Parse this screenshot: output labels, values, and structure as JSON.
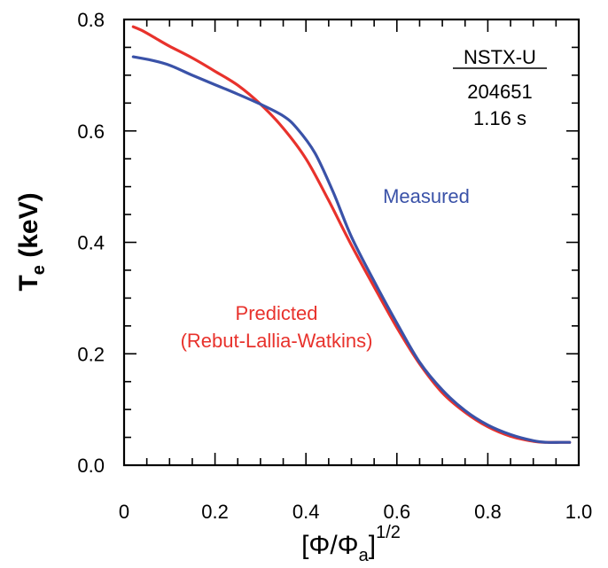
{
  "chart_data": {
    "type": "line",
    "xlim": [
      0.0,
      1.0
    ],
    "ylim": [
      0.0,
      0.8
    ],
    "xticks": [
      "0",
      "0.2",
      "0.4",
      "0.6",
      "0.8",
      "1.0"
    ],
    "yticks": [
      "0.0",
      "0.2",
      "0.4",
      "0.6",
      "0.8"
    ],
    "xlabel": "[Φ/Φa]1/2",
    "xlabel_parts": {
      "base": "[Φ/Φ",
      "sub": "a",
      "close": "]",
      "sup": "1/2"
    },
    "ylabel": "Te (keV)",
    "ylabel_parts": {
      "base": "T",
      "sub": "e",
      "rest": " (keV)"
    },
    "series": [
      {
        "name": "Measured",
        "color": "#3a52a8",
        "x": [
          0.02,
          0.06,
          0.1,
          0.15,
          0.2,
          0.25,
          0.3,
          0.35,
          0.38,
          0.42,
          0.46,
          0.5,
          0.55,
          0.6,
          0.65,
          0.7,
          0.75,
          0.8,
          0.85,
          0.9,
          0.93,
          0.96,
          0.98
        ],
        "y": [
          0.733,
          0.727,
          0.718,
          0.7,
          0.683,
          0.666,
          0.648,
          0.627,
          0.605,
          0.56,
          0.49,
          0.41,
          0.33,
          0.255,
          0.185,
          0.135,
          0.098,
          0.072,
          0.055,
          0.044,
          0.041,
          0.041,
          0.041
        ]
      },
      {
        "name": "Predicted (Rebut-Lallia-Watkins)",
        "color": "#e8322c",
        "x": [
          0.02,
          0.04,
          0.07,
          0.1,
          0.15,
          0.2,
          0.25,
          0.3,
          0.35,
          0.4,
          0.45,
          0.5,
          0.55,
          0.6,
          0.65,
          0.7,
          0.75,
          0.8,
          0.85,
          0.9,
          0.93,
          0.96,
          0.98
        ],
        "y": [
          0.787,
          0.78,
          0.766,
          0.752,
          0.731,
          0.707,
          0.682,
          0.648,
          0.605,
          0.55,
          0.475,
          0.395,
          0.32,
          0.247,
          0.182,
          0.13,
          0.095,
          0.069,
          0.052,
          0.043,
          0.041,
          0.041,
          0.041
        ]
      }
    ],
    "annotations": {
      "device": "NSTX-U",
      "shot": "204651",
      "time": "1.16 s",
      "measured_label": "Measured",
      "predicted_label_line1": "Predicted",
      "predicted_label_line2": "(Rebut-Lallia-Watkins)"
    }
  }
}
